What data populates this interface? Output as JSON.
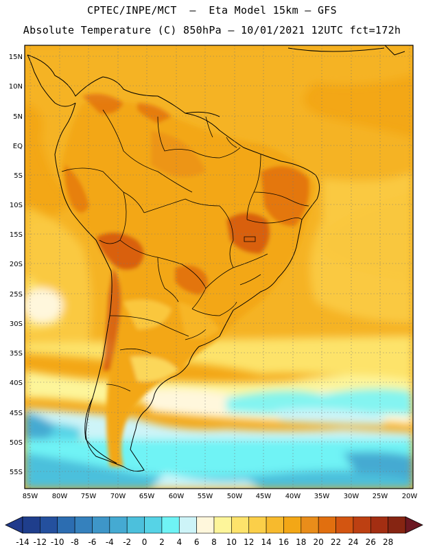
{
  "header": {
    "line1": "CPTEC/INPE/MCT  –  Eta Model 15km – GFS",
    "line2": "Absolute Temperature (C) 850hPa – 10/01/2021 12UTC fct=172h"
  },
  "map": {
    "lat_labels": [
      "15N",
      "10N",
      "5N",
      "EQ",
      "5S",
      "10S",
      "15S",
      "20S",
      "25S",
      "30S",
      "35S",
      "40S",
      "45S",
      "50S",
      "55S"
    ],
    "lon_labels": [
      "85W",
      "80W",
      "75W",
      "70W",
      "65W",
      "60W",
      "55W",
      "50W",
      "45W",
      "40W",
      "35W",
      "30W",
      "25W",
      "20W"
    ]
  },
  "colorbar": {
    "labels": [
      "-14",
      "-12",
      "-10",
      "-8",
      "-6",
      "-4",
      "-2",
      "0",
      "2",
      "4",
      "6",
      "8",
      "10",
      "12",
      "14",
      "16",
      "18",
      "20",
      "22",
      "24",
      "26",
      "28"
    ],
    "colors": [
      "#1f3e8c",
      "#24509e",
      "#2c6db1",
      "#3581bd",
      "#3e96c8",
      "#45aad2",
      "#4cc0dc",
      "#56d3e6",
      "#6ff3f5",
      "#cdf4f8",
      "#fff7dc",
      "#fdf59a",
      "#fde36b",
      "#fbcf49",
      "#f7ba2d",
      "#f3a716",
      "#e98d1a",
      "#e16f0f",
      "#d35511",
      "#bd4012",
      "#a32e12",
      "#862512"
    ],
    "left_arrow_color": "#203a8c",
    "right_arrow_color": "#6c1822"
  }
}
